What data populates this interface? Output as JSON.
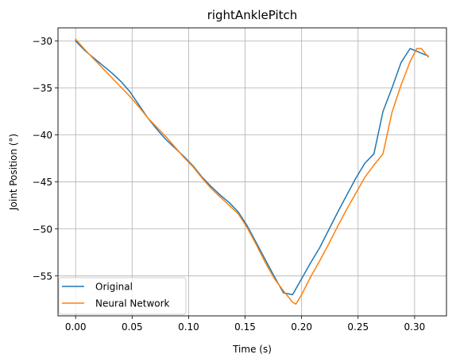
{
  "chart_data": {
    "type": "line",
    "title": "rightAnklePitch",
    "xlabel": "Time (s)",
    "ylabel": "Joint Position (°)",
    "xlim": [
      -0.0156,
      0.3282
    ],
    "ylim": [
      -59.25,
      -28.6
    ],
    "xticks": [
      0.0,
      0.05,
      0.1,
      0.15,
      0.2,
      0.25,
      0.3
    ],
    "xtick_labels": [
      "0.00",
      "0.05",
      "0.10",
      "0.15",
      "0.20",
      "0.25",
      "0.30"
    ],
    "yticks": [
      -55,
      -50,
      -45,
      -40,
      -35,
      -30
    ],
    "ytick_labels": [
      "−55",
      "−50",
      "−45",
      "−40",
      "−35",
      "−30"
    ],
    "grid": true,
    "legend_position": "lower-left",
    "series": [
      {
        "name": "Original",
        "color": "#1f77b4",
        "x": [
          0.0,
          0.008,
          0.016,
          0.024,
          0.032,
          0.04,
          0.048,
          0.056,
          0.064,
          0.072,
          0.08,
          0.088,
          0.096,
          0.104,
          0.112,
          0.12,
          0.128,
          0.136,
          0.144,
          0.152,
          0.16,
          0.168,
          0.176,
          0.184,
          0.192,
          0.2,
          0.208,
          0.216,
          0.224,
          0.232,
          0.24,
          0.248,
          0.256,
          0.264,
          0.272,
          0.28,
          0.288,
          0.296,
          0.304,
          0.312
        ],
        "y": [
          -30.0,
          -31.0,
          -31.8,
          -32.6,
          -33.4,
          -34.3,
          -35.4,
          -36.8,
          -38.2,
          -39.4,
          -40.5,
          -41.4,
          -42.3,
          -43.3,
          -44.5,
          -45.5,
          -46.4,
          -47.2,
          -48.2,
          -49.7,
          -51.5,
          -53.3,
          -55.1,
          -56.8,
          -57.0,
          -55.3,
          -53.6,
          -52.0,
          -50.1,
          -48.2,
          -46.4,
          -44.6,
          -43.0,
          -42.0,
          -37.5,
          -35.0,
          -32.3,
          -30.8,
          -31.2,
          -31.6
        ]
      },
      {
        "name": "Neural Network",
        "color": "#ff7f0e",
        "x": [
          0.0,
          0.008,
          0.016,
          0.024,
          0.032,
          0.04,
          0.048,
          0.056,
          0.064,
          0.072,
          0.08,
          0.088,
          0.096,
          0.104,
          0.112,
          0.12,
          0.128,
          0.136,
          0.144,
          0.152,
          0.16,
          0.168,
          0.176,
          0.184,
          0.192,
          0.195,
          0.2,
          0.208,
          0.216,
          0.224,
          0.232,
          0.24,
          0.248,
          0.256,
          0.264,
          0.272,
          0.28,
          0.288,
          0.296,
          0.302,
          0.306,
          0.312
        ],
        "y": [
          -29.8,
          -30.9,
          -31.9,
          -32.9,
          -33.9,
          -34.9,
          -35.9,
          -37.0,
          -38.2,
          -39.2,
          -40.2,
          -41.3,
          -42.4,
          -43.4,
          -44.6,
          -45.7,
          -46.6,
          -47.5,
          -48.4,
          -49.9,
          -51.7,
          -53.6,
          -55.3,
          -56.6,
          -57.8,
          -58.0,
          -57.0,
          -55.1,
          -53.4,
          -51.6,
          -49.7,
          -47.9,
          -46.2,
          -44.5,
          -43.2,
          -42.0,
          -37.6,
          -34.7,
          -32.2,
          -30.8,
          -30.8,
          -31.7
        ]
      }
    ]
  }
}
